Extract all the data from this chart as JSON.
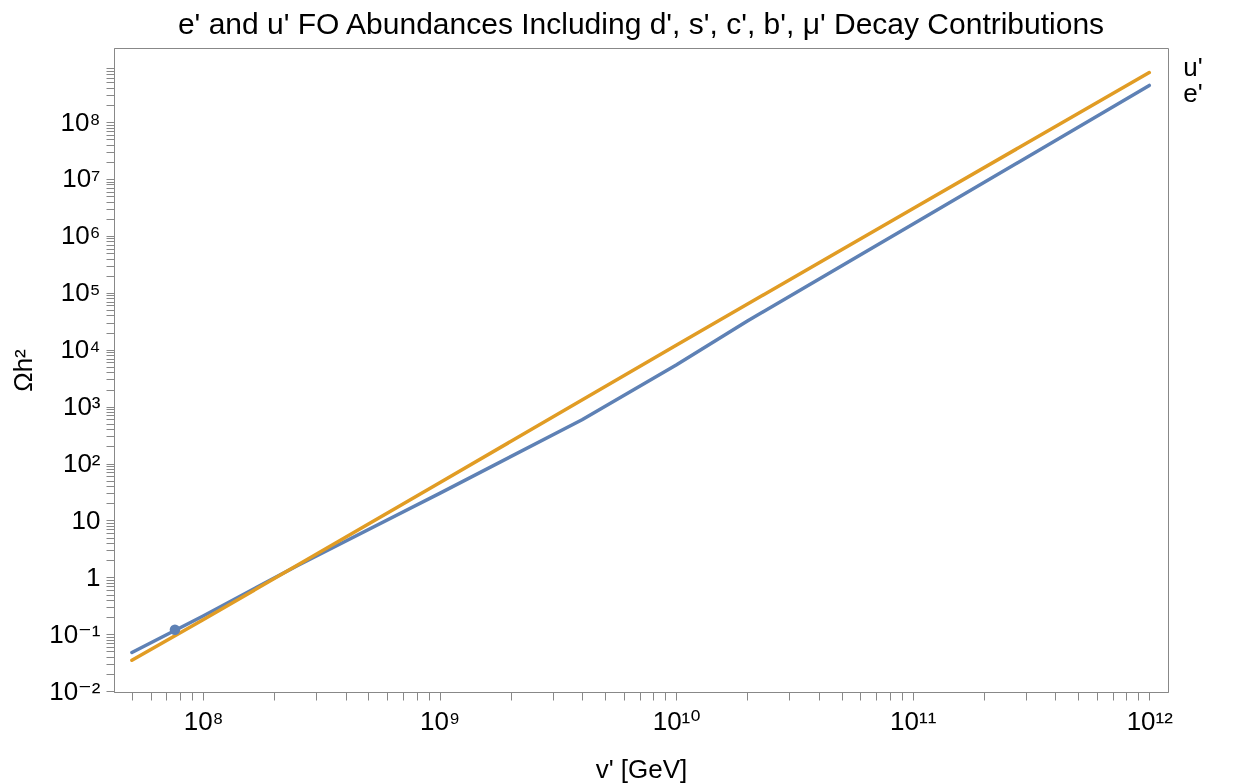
{
  "chart_data": {
    "type": "line",
    "title": "e' and u' FO Abundances Including d', s', c', b', μ' Decay Contributions",
    "xlabel": "v' [GeV]",
    "ylabel": "Ωh²",
    "log": "xy",
    "grid": false,
    "xlim": [
      42000000.0,
      1200000000000.0
    ],
    "ylim": [
      0.0097,
      2000000000.0
    ],
    "xticks": [
      {
        "value": 100000000.0,
        "label": "10⁸"
      },
      {
        "value": 1000000000.0,
        "label": "10⁹"
      },
      {
        "value": 10000000000.0,
        "label": "10¹⁰"
      },
      {
        "value": 100000000000.0,
        "label": "10¹¹"
      },
      {
        "value": 1000000000000.0,
        "label": "10¹²"
      },
      {
        "value": 50000000.0,
        "label": null
      },
      {
        "value": 60000000.0,
        "label": null
      },
      {
        "value": 70000000.0,
        "label": null
      },
      {
        "value": 80000000.0,
        "label": null
      },
      {
        "value": 90000000.0,
        "label": null
      },
      {
        "value": 200000000.0,
        "label": null
      },
      {
        "value": 300000000.0,
        "label": null
      },
      {
        "value": 400000000.0,
        "label": null
      },
      {
        "value": 500000000.0,
        "label": null
      },
      {
        "value": 600000000.0,
        "label": null
      },
      {
        "value": 700000000.0,
        "label": null
      },
      {
        "value": 800000000.0,
        "label": null
      },
      {
        "value": 900000000.0,
        "label": null
      },
      {
        "value": 2000000000.0,
        "label": null
      },
      {
        "value": 3000000000.0,
        "label": null
      },
      {
        "value": 4000000000.0,
        "label": null
      },
      {
        "value": 5000000000.0,
        "label": null
      },
      {
        "value": 6000000000.0,
        "label": null
      },
      {
        "value": 7000000000.0,
        "label": null
      },
      {
        "value": 8000000000.0,
        "label": null
      },
      {
        "value": 9000000000.0,
        "label": null
      },
      {
        "value": 20000000000.0,
        "label": null
      },
      {
        "value": 30000000000.0,
        "label": null
      },
      {
        "value": 40000000000.0,
        "label": null
      },
      {
        "value": 50000000000.0,
        "label": null
      },
      {
        "value": 60000000000.0,
        "label": null
      },
      {
        "value": 70000000000.0,
        "label": null
      },
      {
        "value": 80000000000.0,
        "label": null
      },
      {
        "value": 90000000000.0,
        "label": null
      },
      {
        "value": 200000000000.0,
        "label": null
      },
      {
        "value": 300000000000.0,
        "label": null
      },
      {
        "value": 400000000000.0,
        "label": null
      },
      {
        "value": 500000000000.0,
        "label": null
      },
      {
        "value": 600000000000.0,
        "label": null
      },
      {
        "value": 700000000000.0,
        "label": null
      },
      {
        "value": 800000000000.0,
        "label": null
      },
      {
        "value": 900000000000.0,
        "label": null
      }
    ],
    "yticks": [
      {
        "value": 0.01,
        "label": "10⁻²"
      },
      {
        "value": 0.1,
        "label": "10⁻¹"
      },
      1,
      10,
      {
        "value": 100,
        "label": "10²"
      },
      {
        "value": 1000,
        "label": "10³"
      },
      {
        "value": 10000.0,
        "label": "10⁴"
      },
      {
        "value": 100000.0,
        "label": "10⁵"
      },
      {
        "value": 1000000.0,
        "label": "10⁶"
      },
      {
        "value": 10000000.0,
        "label": "10⁷"
      },
      {
        "value": 100000000.0,
        "label": "10⁸"
      },
      {
        "value": 0.02,
        "label": null
      },
      {
        "value": 0.03,
        "label": null
      },
      {
        "value": 0.04,
        "label": null
      },
      {
        "value": 0.05,
        "label": null
      },
      {
        "value": 0.06,
        "label": null
      },
      {
        "value": 0.07,
        "label": null
      },
      {
        "value": 0.08,
        "label": null
      },
      {
        "value": 0.09,
        "label": null
      },
      {
        "value": 0.2,
        "label": null
      },
      {
        "value": 0.3,
        "label": null
      },
      {
        "value": 0.4,
        "label": null
      },
      {
        "value": 0.5,
        "label": null
      },
      {
        "value": 0.6,
        "label": null
      },
      {
        "value": 0.7,
        "label": null
      },
      {
        "value": 0.8,
        "label": null
      },
      {
        "value": 0.9,
        "label": null
      },
      {
        "value": 2,
        "label": null
      },
      {
        "value": 3,
        "label": null
      },
      {
        "value": 4,
        "label": null
      },
      {
        "value": 5,
        "label": null
      },
      {
        "value": 6,
        "label": null
      },
      {
        "value": 7,
        "label": null
      },
      {
        "value": 8,
        "label": null
      },
      {
        "value": 9,
        "label": null
      },
      {
        "value": 20,
        "label": null
      },
      {
        "value": 30,
        "label": null
      },
      {
        "value": 40,
        "label": null
      },
      {
        "value": 50,
        "label": null
      },
      {
        "value": 60,
        "label": null
      },
      {
        "value": 70,
        "label": null
      },
      {
        "value": 80,
        "label": null
      },
      {
        "value": 90,
        "label": null
      },
      {
        "value": 200,
        "label": null
      },
      {
        "value": 300,
        "label": null
      },
      {
        "value": 400,
        "label": null
      },
      {
        "value": 500,
        "label": null
      },
      {
        "value": 600,
        "label": null
      },
      {
        "value": 700,
        "label": null
      },
      {
        "value": 800,
        "label": null
      },
      {
        "value": 900,
        "label": null
      },
      {
        "value": 2000,
        "label": null
      },
      {
        "value": 3000,
        "label": null
      },
      {
        "value": 4000,
        "label": null
      },
      {
        "value": 5000,
        "label": null
      },
      {
        "value": 6000,
        "label": null
      },
      {
        "value": 7000,
        "label": null
      },
      {
        "value": 8000,
        "label": null
      },
      {
        "value": 9000,
        "label": null
      },
      {
        "value": 20000.0,
        "label": null
      },
      {
        "value": 30000.0,
        "label": null
      },
      {
        "value": 40000.0,
        "label": null
      },
      {
        "value": 50000.0,
        "label": null
      },
      {
        "value": 60000.0,
        "label": null
      },
      {
        "value": 70000.0,
        "label": null
      },
      {
        "value": 80000.0,
        "label": null
      },
      {
        "value": 90000.0,
        "label": null
      },
      {
        "value": 200000.0,
        "label": null
      },
      {
        "value": 300000.0,
        "label": null
      },
      {
        "value": 400000.0,
        "label": null
      },
      {
        "value": 500000.0,
        "label": null
      },
      {
        "value": 600000.0,
        "label": null
      },
      {
        "value": 700000.0,
        "label": null
      },
      {
        "value": 800000.0,
        "label": null
      },
      {
        "value": 900000.0,
        "label": null
      },
      {
        "value": 2000000.0,
        "label": null
      },
      {
        "value": 3000000.0,
        "label": null
      },
      {
        "value": 4000000.0,
        "label": null
      },
      {
        "value": 5000000.0,
        "label": null
      },
      {
        "value": 6000000.0,
        "label": null
      },
      {
        "value": 7000000.0,
        "label": null
      },
      {
        "value": 8000000.0,
        "label": null
      },
      {
        "value": 9000000.0,
        "label": null
      },
      {
        "value": 20000000.0,
        "label": null
      },
      {
        "value": 30000000.0,
        "label": null
      },
      {
        "value": 40000000.0,
        "label": null
      },
      {
        "value": 50000000.0,
        "label": null
      },
      {
        "value": 60000000.0,
        "label": null
      },
      {
        "value": 70000000.0,
        "label": null
      },
      {
        "value": 80000000.0,
        "label": null
      },
      {
        "value": 90000000.0,
        "label": null
      },
      {
        "value": 200000000.0,
        "label": null
      },
      {
        "value": 300000000.0,
        "label": null
      },
      {
        "value": 400000000.0,
        "label": null
      },
      {
        "value": 500000000.0,
        "label": null
      },
      {
        "value": 600000000.0,
        "label": null
      },
      {
        "value": 700000000.0,
        "label": null
      },
      {
        "value": 800000000.0,
        "label": null
      },
      {
        "value": 900000000.0,
        "label": null
      }
    ],
    "series": [
      {
        "name": "e'",
        "color": "#5e81b5",
        "x": [
          50000000.0,
          100000000.0,
          250000000.0,
          1000000000.0,
          4000000000.0,
          10000000000.0,
          20000000000.0,
          100000000000.0,
          1000000000000.0
        ],
        "values": [
          0.048,
          0.21,
          1.6,
          30,
          590,
          5400,
          32000,
          1600000.0,
          440000000.0
        ]
      },
      {
        "name": "u'",
        "color": "#e19c24",
        "x": [
          50000000.0,
          100000000.0,
          1000000000.0,
          10000000000.0,
          100000000000.0,
          1000000000000.0
        ],
        "values": [
          0.035,
          0.18,
          46,
          12000,
          3000000.0,
          740000000.0
        ]
      },
      {
        "type": "scatter",
        "marker": "circle",
        "color": "#5e81b5",
        "x": [
          76000000.0
        ],
        "values": [
          0.12
        ]
      }
    ]
  }
}
